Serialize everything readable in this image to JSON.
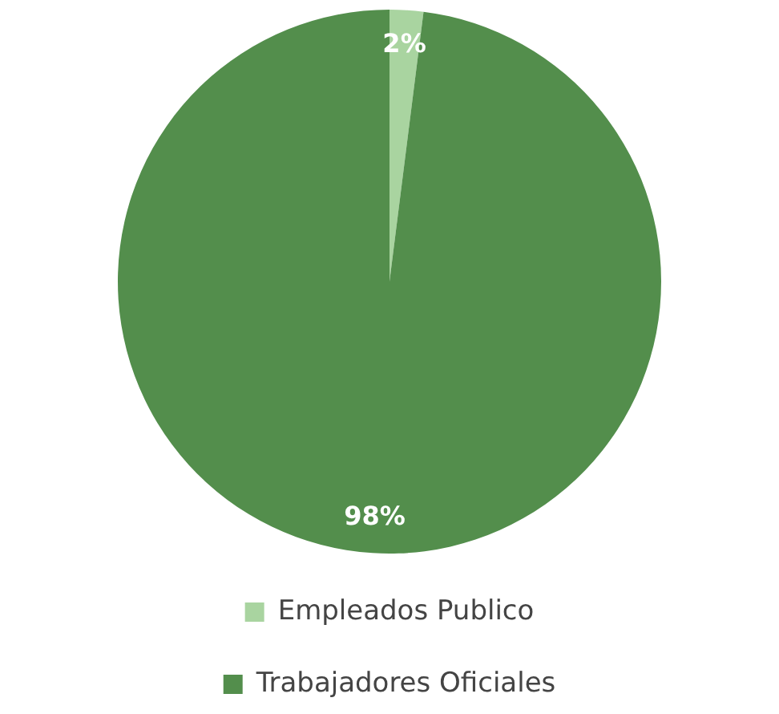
{
  "chart_data": {
    "type": "pie",
    "categories": [
      "Empleados Publico",
      "Trabajadores Oficiales"
    ],
    "values": [
      2,
      98
    ],
    "colors": [
      "#a9d4a0",
      "#538e4c"
    ],
    "value_labels": [
      "2%",
      "98%"
    ],
    "legend": "bottom"
  }
}
